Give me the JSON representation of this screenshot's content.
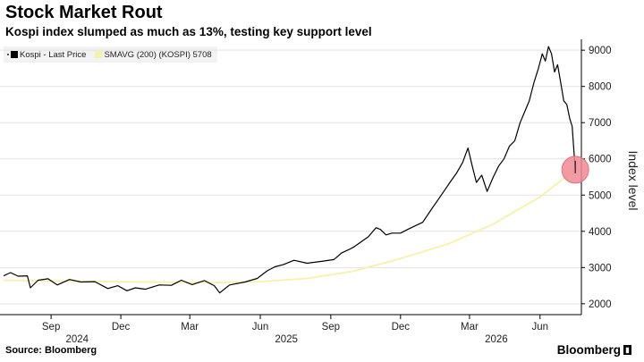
{
  "header": {
    "title": "Stock Market Rout",
    "subtitle": "Kospi index slumped as much as 13%, testing key support level"
  },
  "legend": [
    {
      "label": "Kospi - Last Price",
      "color": "#000000"
    },
    {
      "label": "SMAVG (200) (KOSPI) 5708",
      "color": "#f7f1a6"
    }
  ],
  "footer": {
    "source": "Source: Bloomberg",
    "brand": "Bloomberg"
  },
  "chart_data": {
    "type": "line",
    "ylabel": "Index level",
    "ylim": [
      1700,
      9300
    ],
    "xlim": [
      "2024-07-01",
      "2026-07-25"
    ],
    "y_ticks": [
      2000,
      3000,
      4000,
      5000,
      6000,
      7000,
      8000,
      9000
    ],
    "x_ticks": [
      {
        "label": "Sep",
        "date": "2024-09-01"
      },
      {
        "label": "Dec",
        "date": "2024-12-01"
      },
      {
        "label": "Mar",
        "date": "2025-03-01"
      },
      {
        "label": "Jun",
        "date": "2025-06-01"
      },
      {
        "label": "Sep",
        "date": "2025-09-01"
      },
      {
        "label": "Dec",
        "date": "2025-12-01"
      },
      {
        "label": "Mar",
        "date": "2026-03-01"
      },
      {
        "label": "Jun",
        "date": "2026-06-01"
      }
    ],
    "year_labels": [
      {
        "label": "2024",
        "date": "2024-10-05"
      },
      {
        "label": "2025",
        "date": "2025-07-05"
      },
      {
        "label": "2026",
        "date": "2026-04-05"
      }
    ],
    "highlight": {
      "date": "2026-07-17",
      "value": 5700,
      "color": "#f08a94"
    },
    "series": [
      {
        "name": "Kospi - Last Price",
        "color": "#000000",
        "points": [
          [
            "2024-07-01",
            2770
          ],
          [
            "2024-07-10",
            2860
          ],
          [
            "2024-07-20",
            2760
          ],
          [
            "2024-08-01",
            2770
          ],
          [
            "2024-08-05",
            2440
          ],
          [
            "2024-08-15",
            2650
          ],
          [
            "2024-08-28",
            2690
          ],
          [
            "2024-09-09",
            2520
          ],
          [
            "2024-09-25",
            2670
          ],
          [
            "2024-10-10",
            2600
          ],
          [
            "2024-10-28",
            2610
          ],
          [
            "2024-11-14",
            2420
          ],
          [
            "2024-11-27",
            2500
          ],
          [
            "2024-12-09",
            2360
          ],
          [
            "2024-12-20",
            2440
          ],
          [
            "2025-01-02",
            2400
          ],
          [
            "2025-01-20",
            2520
          ],
          [
            "2025-02-05",
            2510
          ],
          [
            "2025-02-18",
            2650
          ],
          [
            "2025-03-04",
            2530
          ],
          [
            "2025-03-20",
            2640
          ],
          [
            "2025-04-02",
            2500
          ],
          [
            "2025-04-09",
            2300
          ],
          [
            "2025-04-22",
            2520
          ],
          [
            "2025-05-12",
            2600
          ],
          [
            "2025-05-28",
            2700
          ],
          [
            "2025-06-10",
            2910
          ],
          [
            "2025-06-20",
            3020
          ],
          [
            "2025-07-01",
            3080
          ],
          [
            "2025-07-15",
            3200
          ],
          [
            "2025-08-01",
            3120
          ],
          [
            "2025-08-20",
            3170
          ],
          [
            "2025-09-05",
            3220
          ],
          [
            "2025-09-15",
            3400
          ],
          [
            "2025-09-25",
            3500
          ],
          [
            "2025-10-02",
            3580
          ],
          [
            "2025-10-10",
            3700
          ],
          [
            "2025-10-20",
            3850
          ],
          [
            "2025-10-30",
            4100
          ],
          [
            "2025-11-05",
            4050
          ],
          [
            "2025-11-12",
            3900
          ],
          [
            "2025-11-20",
            3950
          ],
          [
            "2025-12-01",
            3950
          ],
          [
            "2025-12-10",
            4050
          ],
          [
            "2025-12-20",
            4150
          ],
          [
            "2025-12-30",
            4250
          ],
          [
            "2026-01-10",
            4600
          ],
          [
            "2026-01-20",
            4900
          ],
          [
            "2026-01-28",
            5150
          ],
          [
            "2026-02-05",
            5400
          ],
          [
            "2026-02-12",
            5600
          ],
          [
            "2026-02-20",
            5900
          ],
          [
            "2026-02-27",
            6300
          ],
          [
            "2026-03-04",
            5850
          ],
          [
            "2026-03-10",
            5350
          ],
          [
            "2026-03-17",
            5550
          ],
          [
            "2026-03-24",
            5100
          ],
          [
            "2026-04-01",
            5500
          ],
          [
            "2026-04-08",
            5800
          ],
          [
            "2026-04-15",
            6000
          ],
          [
            "2026-04-22",
            6350
          ],
          [
            "2026-04-29",
            6500
          ],
          [
            "2026-05-06",
            7000
          ],
          [
            "2026-05-12",
            7300
          ],
          [
            "2026-05-18",
            7600
          ],
          [
            "2026-05-24",
            8100
          ],
          [
            "2026-05-30",
            8500
          ],
          [
            "2026-06-04",
            8900
          ],
          [
            "2026-06-08",
            8700
          ],
          [
            "2026-06-12",
            9100
          ],
          [
            "2026-06-16",
            8900
          ],
          [
            "2026-06-20",
            8400
          ],
          [
            "2026-06-24",
            8600
          ],
          [
            "2026-06-28",
            8100
          ],
          [
            "2026-07-02",
            7600
          ],
          [
            "2026-07-06",
            7500
          ],
          [
            "2026-07-10",
            7100
          ],
          [
            "2026-07-13",
            6900
          ],
          [
            "2026-07-15",
            6300
          ],
          [
            "2026-07-17",
            5700
          ]
        ]
      },
      {
        "name": "SMAVG (200) (KOSPI) 5708",
        "color": "#f7f1a6",
        "points": [
          [
            "2024-07-01",
            2650
          ],
          [
            "2024-10-01",
            2620
          ],
          [
            "2025-01-01",
            2600
          ],
          [
            "2025-04-01",
            2580
          ],
          [
            "2025-06-01",
            2610
          ],
          [
            "2025-08-01",
            2700
          ],
          [
            "2025-10-01",
            2900
          ],
          [
            "2025-12-01",
            3250
          ],
          [
            "2026-02-01",
            3650
          ],
          [
            "2026-04-01",
            4200
          ],
          [
            "2026-06-01",
            4950
          ],
          [
            "2026-07-17",
            5708
          ]
        ]
      }
    ]
  }
}
